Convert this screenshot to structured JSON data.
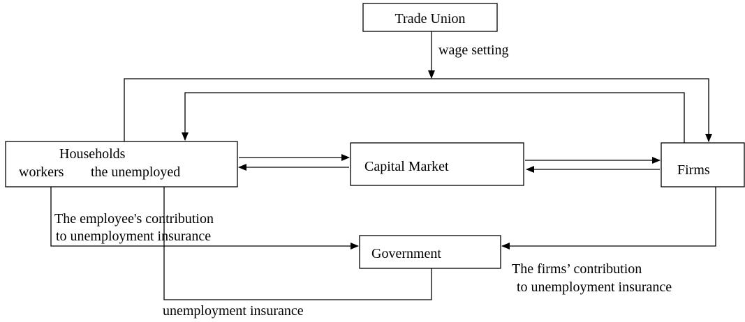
{
  "nodes": [
    {
      "label": "Trade Union"
    },
    {
      "label": "Households",
      "sublabels": [
        "workers",
        "the unemployed"
      ]
    },
    {
      "label": "Capital Market"
    },
    {
      "label": "Firms"
    },
    {
      "label": "Government"
    }
  ],
  "edges": [
    {
      "label": "wage setting"
    },
    {
      "label": [
        "The employee's contribution",
        "to unemployment insurance"
      ]
    },
    {
      "label": [
        "The firms’ contribution",
        "to unemployment insurance"
      ]
    },
    {
      "label": "unemployment insurance"
    }
  ]
}
